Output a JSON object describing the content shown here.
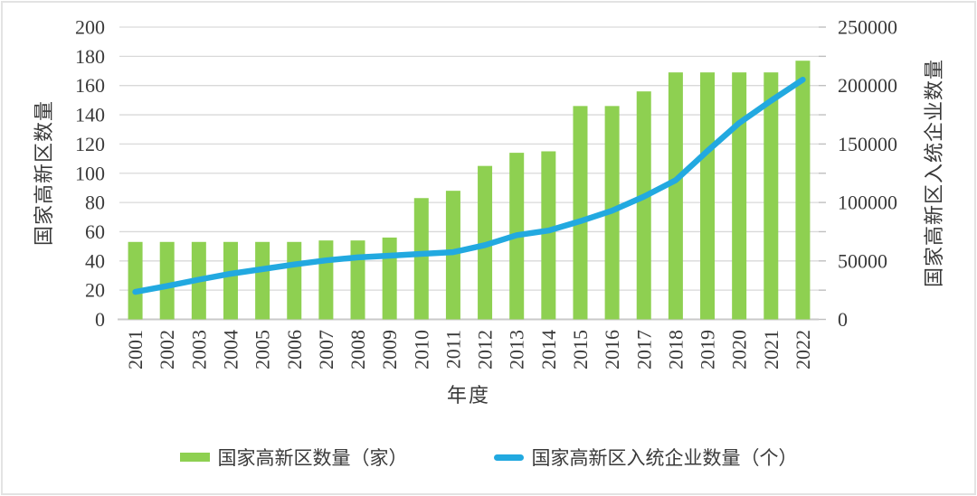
{
  "chart_data": {
    "type": "combo-bar-line",
    "x_title": "年度",
    "categories": [
      "2001",
      "2002",
      "2003",
      "2004",
      "2005",
      "2006",
      "2007",
      "2008",
      "2009",
      "2010",
      "2011",
      "2012",
      "2013",
      "2014",
      "2015",
      "2016",
      "2017",
      "2018",
      "2019",
      "2020",
      "2021",
      "2022"
    ],
    "series": [
      {
        "name": "国家高新区数量（家）",
        "type": "bar",
        "axis": "left",
        "color": "#8ed051",
        "values": [
          53,
          53,
          53,
          53,
          53,
          53,
          54,
          54,
          56,
          83,
          88,
          105,
          114,
          115,
          146,
          146,
          156,
          169,
          169,
          169,
          169,
          177
        ]
      },
      {
        "name": "国家高新区入统企业数量（个）",
        "type": "line",
        "axis": "right",
        "color": "#22a9e0",
        "values": [
          23500,
          28500,
          34000,
          39000,
          43000,
          47000,
          50500,
          53000,
          54500,
          56000,
          57500,
          63500,
          72000,
          76000,
          84000,
          93000,
          105000,
          119000,
          144000,
          168000,
          187000,
          205000
        ]
      }
    ],
    "left_axis": {
      "title": "国家高新区数量",
      "min": 0,
      "max": 200,
      "step": 20,
      "tick_labels": [
        "0",
        "20",
        "40",
        "60",
        "80",
        "100",
        "120",
        "140",
        "160",
        "180",
        "200"
      ]
    },
    "right_axis": {
      "title": "国家高新区入统企业数量",
      "min": 0,
      "max": 250000,
      "step": 50000,
      "tick_labels": [
        "0",
        "50000",
        "100000",
        "150000",
        "200000",
        "250000"
      ]
    },
    "grid": true,
    "legend_position": "bottom"
  },
  "colors": {
    "bar": "#8ed051",
    "line": "#22a9e0",
    "grid": "#d9d9d9",
    "axis": "#c9c9c9",
    "tick": "#bfbfbf",
    "text": "#3a3a3a",
    "frame": "#e3e3e3"
  }
}
